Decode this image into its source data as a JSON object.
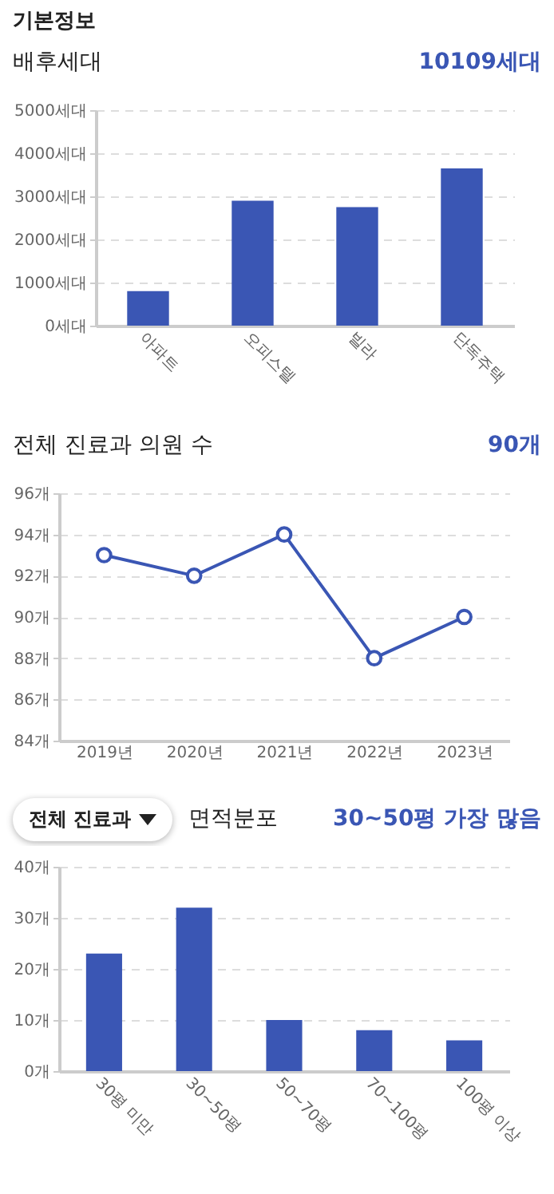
{
  "chart_data": [
    {
      "type": "bar",
      "title": "배후세대",
      "subtitle": "10109세대",
      "annotations": [
        "기본정보"
      ],
      "categories": [
        "아파트",
        "오피스텔",
        "빌라",
        "단독주택"
      ],
      "values": [
        800,
        2900,
        2750,
        3650
      ],
      "color": "#3a56b4",
      "ylim": [
        0,
        5000
      ],
      "yticks": [
        {
          "value": 0,
          "label": "0세대"
        },
        {
          "value": 1000,
          "label": "1000세대"
        },
        {
          "value": 2000,
          "label": "2000세대"
        },
        {
          "value": 3000,
          "label": "3000세대"
        },
        {
          "value": 4000,
          "label": "4000세대"
        },
        {
          "value": 5000,
          "label": "5000세대"
        }
      ],
      "grid": "y"
    },
    {
      "type": "line",
      "title": "전체 진료과 의원 수",
      "subtitle": "90개",
      "categories": [
        "2019년",
        "2020년",
        "2021년",
        "2022년",
        "2023년"
      ],
      "values": [
        93,
        92,
        94,
        88,
        90
      ],
      "color": "#3a56b4",
      "ylim": [
        84,
        96
      ],
      "yticks": [
        {
          "value": 84,
          "label": "84개"
        },
        {
          "value": 86,
          "label": "86개"
        },
        {
          "value": 88,
          "label": "88개"
        },
        {
          "value": 90,
          "label": "90개"
        },
        {
          "value": 92,
          "label": "92개"
        },
        {
          "value": 94,
          "label": "94개"
        },
        {
          "value": 96,
          "label": "96개"
        }
      ],
      "grid": "y",
      "marker": "circle",
      "line_style": "solid"
    },
    {
      "type": "bar",
      "title": "면적분포",
      "subtitle": "30~50평 가장 많음",
      "annotations": [
        "전체 진료과"
      ],
      "categories": [
        "30평 미만",
        "30~50평",
        "50~70평",
        "70~100평",
        "100평 이상"
      ],
      "values": [
        23,
        32,
        10,
        8,
        6
      ],
      "color": "#3a56b4",
      "ylim": [
        0,
        40
      ],
      "yticks": [
        {
          "value": 0,
          "label": "0개"
        },
        {
          "value": 10,
          "label": "10개"
        },
        {
          "value": 20,
          "label": "20개"
        },
        {
          "value": 30,
          "label": "30개"
        },
        {
          "value": 40,
          "label": "40개"
        }
      ],
      "grid": "y"
    }
  ]
}
